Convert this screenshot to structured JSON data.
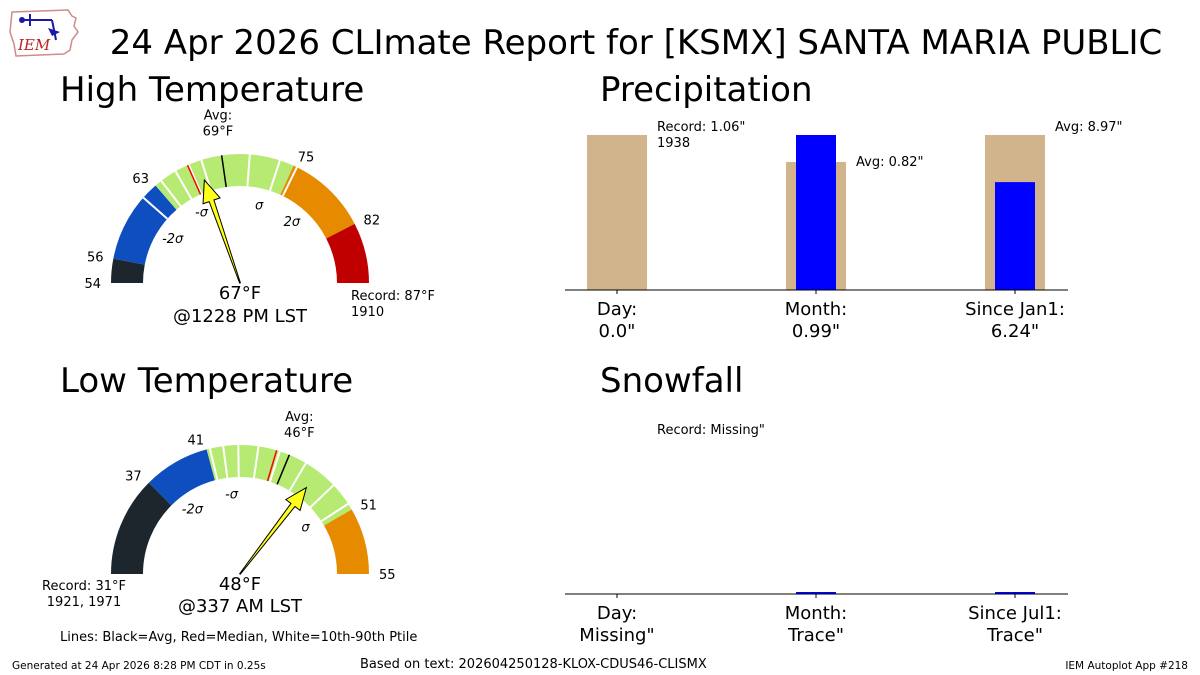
{
  "header": {
    "title": "24 Apr 2026 CLImate Report for [KSMX] SANTA MARIA PUBLIC",
    "logo_text": "IEM"
  },
  "footer": {
    "generated": "Generated at 24 Apr 2026 8:28 PM CDT in 0.25s",
    "based_on": "Based on text: 202604250128-KLOX-CDUS46-CLISMX",
    "app": "IEM Autoplot App #218",
    "lines_legend": "Lines: Black=Avg, Red=Median, White=10th-90th Ptile"
  },
  "colors": {
    "dark": "#1c262c",
    "blue": "#0e4ebf",
    "green": "#b7ea72",
    "orange": "#e68a00",
    "red": "#c00000",
    "arrow": "#ffff1a",
    "tan": "#d2b48c",
    "bar": "#0000ff"
  },
  "chart_data": [
    {
      "type": "gauge",
      "title": "High Temperature",
      "range": [
        54,
        87
      ],
      "bands": [
        {
          "from": 54,
          "to": 56,
          "color": "dark"
        },
        {
          "from": 56,
          "to": 63,
          "color": "blue"
        },
        {
          "from": 63,
          "to": 75,
          "color": "green"
        },
        {
          "from": 75,
          "to": 82,
          "color": "orange"
        },
        {
          "from": 82,
          "to": 87,
          "color": "red"
        }
      ],
      "tick_labels": [
        {
          "value": 54,
          "label": "54"
        },
        {
          "value": 56,
          "label": "56"
        },
        {
          "value": 63,
          "label": "63"
        },
        {
          "value": 75,
          "label": "75"
        },
        {
          "value": 82,
          "label": "82"
        }
      ],
      "sigma_labels": [
        {
          "value": 60.2,
          "label": "-2σ"
        },
        {
          "value": 65.3,
          "label": "-σ"
        },
        {
          "value": 73.0,
          "label": "σ"
        },
        {
          "value": 77.8,
          "label": "2σ"
        }
      ],
      "percentile_lines": [
        61.6,
        63.6,
        65.0,
        66.2,
        67.3,
        71.3,
        73.8,
        75.3
      ],
      "avg": 69,
      "avg_label": [
        "Avg:",
        "69°F"
      ],
      "median": 66.1,
      "observed": 67,
      "observed_label": [
        "67°F",
        "@1228 PM LST"
      ],
      "record_label": [
        "Record: 87°F",
        "1910"
      ],
      "record_side": "right"
    },
    {
      "type": "gauge",
      "title": "Low Temperature",
      "range": [
        31,
        55
      ],
      "bands": [
        {
          "from": 31,
          "to": 37,
          "color": "dark"
        },
        {
          "from": 37,
          "to": 41,
          "color": "blue"
        },
        {
          "from": 41,
          "to": 51,
          "color": "green"
        },
        {
          "from": 51,
          "to": 55,
          "color": "orange"
        }
      ],
      "tick_labels": [
        {
          "value": 37,
          "label": "37"
        },
        {
          "value": 41,
          "label": "41"
        },
        {
          "value": 51,
          "label": "51"
        },
        {
          "value": 55,
          "label": "55"
        }
      ],
      "sigma_labels": [
        {
          "value": 38.2,
          "label": "-2σ"
        },
        {
          "value": 42.2,
          "label": "-σ"
        },
        {
          "value": 50.2,
          "label": "σ"
        }
      ],
      "percentile_lines": [
        41.2,
        42.0,
        42.9,
        44.1,
        45.4,
        47.1,
        49.2,
        50.6
      ],
      "avg": 46,
      "avg_label": [
        "Avg:",
        "46°F"
      ],
      "median": 45.2,
      "observed": 48,
      "observed_label": [
        "48°F",
        "@337 AM LST"
      ],
      "record_label": [
        "Record: 31°F",
        "1921, 1971"
      ],
      "record_side": "left"
    },
    {
      "type": "bar",
      "title": "Precipitation",
      "categories": [
        "Day:\n0.0\"",
        "Month:\n0.99\"",
        "Since Jan1:\n6.24\""
      ],
      "series": [
        {
          "name": "Observed",
          "values": [
            0.0,
            0.99,
            6.24
          ]
        }
      ],
      "reference": [
        {
          "label": "Record: 1.06\"\n1938",
          "normalized_height": 1.0
        },
        {
          "label": "Avg: 0.82\"",
          "normalized_height": 0.826
        },
        {
          "label": "Avg: 8.97\"",
          "normalized_height": 1.0
        }
      ],
      "observed_normalized": [
        0.0,
        1.0,
        0.696
      ]
    },
    {
      "type": "bar",
      "title": "Snowfall",
      "categories": [
        "Day:\nMissing\"",
        "Month:\nTrace\"",
        "Since Jul1:\nTrace\""
      ],
      "series": [
        {
          "name": "Observed",
          "values": [
            "Missing",
            "Trace",
            "Trace"
          ]
        }
      ],
      "reference": [
        {
          "label": "Record: Missing\"",
          "normalized_height": 0
        }
      ],
      "observed_normalized": [
        0,
        0.01,
        0.01
      ]
    }
  ]
}
